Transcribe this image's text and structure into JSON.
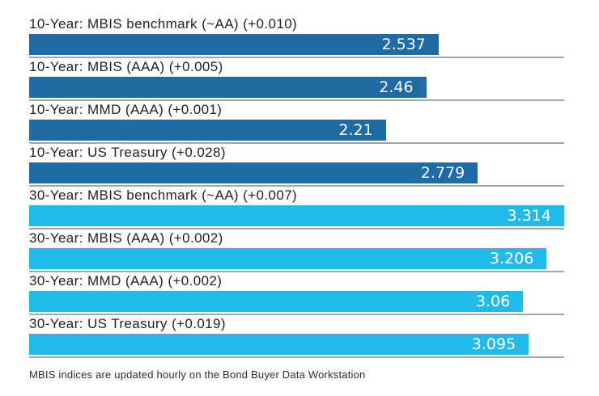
{
  "footnote": "MBIS indices are updated hourly on the Bond Buyer Data Workstation",
  "colors": {
    "ten_year_bar": "#1e6ba6",
    "thirty_year_bar": "#22bbe9",
    "separator": "#a7a7a7",
    "label_text": "#231f20",
    "value_text": "#ffffff"
  },
  "chart_data": {
    "type": "bar",
    "orientation": "horizontal",
    "title": "",
    "xlabel": "",
    "ylabel": "",
    "xlim": [
      0,
      3.42
    ],
    "grid": false,
    "legend": false,
    "value_labels_inside_bars": true,
    "rows": [
      {
        "label": "10-Year: MBIS benchmark (~AA) (+0.010)",
        "value": 2.537,
        "display": "2.537",
        "color": "#1e6ba6"
      },
      {
        "label": "10-Year: MBIS (AAA) (+0.005)",
        "value": 2.46,
        "display": "2.46",
        "color": "#1e6ba6"
      },
      {
        "label": "10-Year: MMD (AAA) (+0.001)",
        "value": 2.21,
        "display": "2.21",
        "color": "#1e6ba6"
      },
      {
        "label": "10-Year: US Treasury (+0.028)",
        "value": 2.779,
        "display": "2.779",
        "color": "#1e6ba6"
      },
      {
        "label": "30-Year: MBIS benchmark (~AA) (+0.007)",
        "value": 3.314,
        "display": "3.314",
        "color": "#22bbe9"
      },
      {
        "label": "30-Year: MBIS (AAA) (+0.002)",
        "value": 3.206,
        "display": "3.206",
        "color": "#22bbe9"
      },
      {
        "label": "30-Year: MMD (AAA) (+0.002)",
        "value": 3.06,
        "display": "3.06",
        "color": "#22bbe9"
      },
      {
        "label": "30-Year: US Treasury (+0.019)",
        "value": 3.095,
        "display": "3.095",
        "color": "#22bbe9"
      }
    ]
  }
}
